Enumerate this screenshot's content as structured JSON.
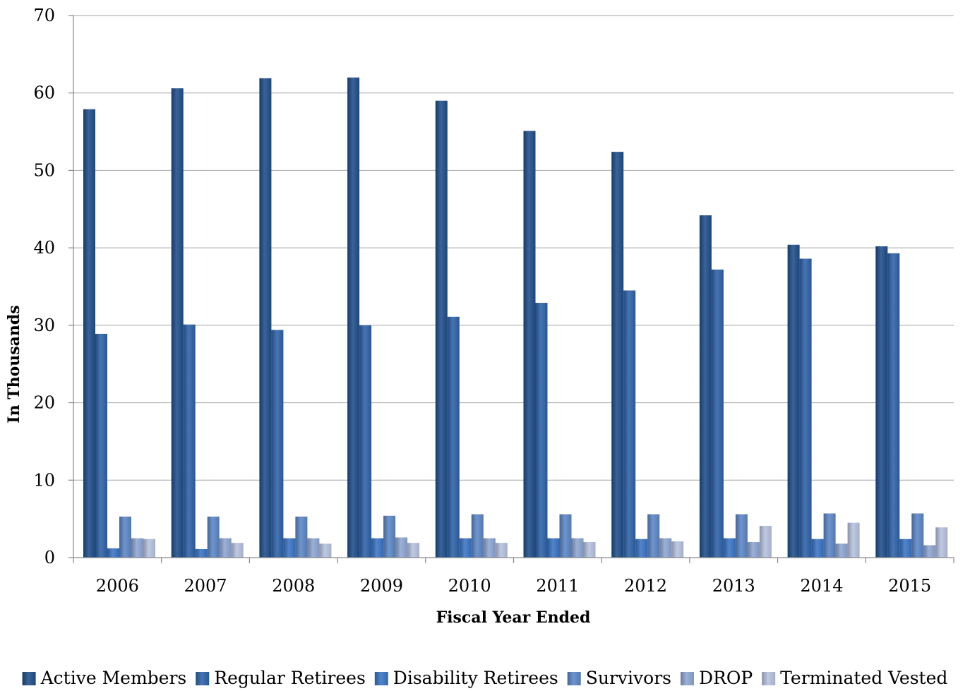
{
  "chart_data": {
    "type": "bar",
    "title": "",
    "xlabel": "Fiscal Year Ended",
    "ylabel": "In Thousands",
    "ylim": [
      0,
      70
    ],
    "yticks": [
      0,
      10,
      20,
      30,
      40,
      50,
      60,
      70
    ],
    "grid": true,
    "legend_position": "bottom",
    "categories": [
      "2006",
      "2007",
      "2008",
      "2009",
      "2010",
      "2011",
      "2012",
      "2013",
      "2014",
      "2015"
    ],
    "series": [
      {
        "name": "Active Members",
        "color": "#1F4E8A",
        "values": [
          57.9,
          60.6,
          61.9,
          62.0,
          59.0,
          55.1,
          52.4,
          44.2,
          40.4,
          40.2
        ]
      },
      {
        "name": "Regular Retirees",
        "color": "#2E62A8",
        "values": [
          28.9,
          30.1,
          29.4,
          30.0,
          31.1,
          32.9,
          34.5,
          37.2,
          38.6,
          39.3
        ]
      },
      {
        "name": "Disability Retirees",
        "color": "#3A74C4",
        "values": [
          1.2,
          1.1,
          2.5,
          2.5,
          2.5,
          2.5,
          2.4,
          2.5,
          2.4,
          2.4
        ]
      },
      {
        "name": "Survivors",
        "color": "#5C86C6",
        "values": [
          5.3,
          5.3,
          5.3,
          5.4,
          5.6,
          5.6,
          5.6,
          5.6,
          5.7,
          5.7
        ]
      },
      {
        "name": "DROP",
        "color": "#8EA6D2",
        "values": [
          2.5,
          2.5,
          2.5,
          2.6,
          2.5,
          2.5,
          2.5,
          2.0,
          1.8,
          1.6
        ]
      },
      {
        "name": "Terminated Vested",
        "color": "#B6C2DE",
        "values": [
          2.4,
          1.9,
          1.8,
          1.9,
          1.9,
          2.0,
          2.1,
          4.1,
          4.5,
          3.9
        ]
      }
    ]
  }
}
